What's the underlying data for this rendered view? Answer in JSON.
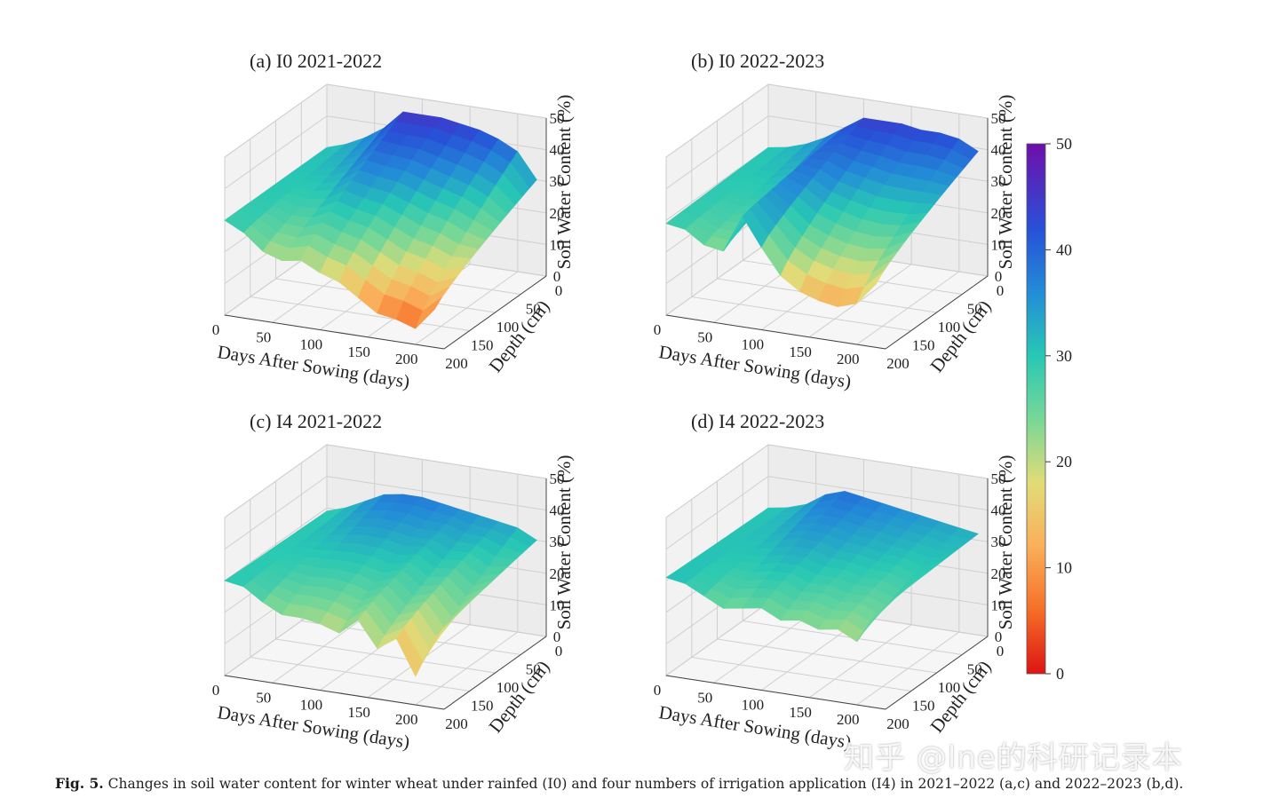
{
  "caption": {
    "label": "Fig. 5.",
    "text": "Changes in soil water content for winter wheat under rainfed (I0) and four numbers of irrigation application (I4) in 2021–2022 (a,c) and 2022–2023 (b,d)."
  },
  "watermark": "知乎 @lne的科研记录本",
  "colorbar": {
    "colormap": "rainbow_r (red=0 → purple=50)",
    "ticks": [
      "0",
      "10",
      "20",
      "30",
      "40",
      "50"
    ],
    "range": [
      0,
      50
    ]
  },
  "chart_data": [
    {
      "type": "surface3d",
      "title": "(a)  I0   2021-2022",
      "xlabel": "Days After Sowing (days)",
      "ylabel": "Depth (cm)",
      "zlabel": "Soil Water Content (%)",
      "xticks": [
        "0",
        "50",
        "100",
        "150",
        "200"
      ],
      "yticks": [
        "0",
        "50",
        "100",
        "150",
        "200"
      ],
      "zticks": [
        "0",
        "10",
        "20",
        "30",
        "40",
        "50"
      ],
      "xlim": [
        0,
        230
      ],
      "ylim": [
        0,
        200
      ],
      "zlim": [
        0,
        50
      ],
      "grid": true,
      "profile_days": [
        0,
        20,
        40,
        60,
        80,
        100,
        120,
        140,
        160,
        180,
        200,
        220
      ],
      "surface_swc_min": [
        30,
        27,
        22,
        20,
        21,
        18,
        16,
        12,
        8,
        7,
        5,
        12
      ],
      "deep_swc_max": [
        30,
        32,
        35,
        39,
        45,
        45,
        45,
        44,
        43,
        41,
        38,
        30
      ]
    },
    {
      "type": "surface3d",
      "title": "(b)  I0   2022-2023",
      "xlabel": "Days After Sowing (days)",
      "ylabel": "Depth (cm)",
      "zlabel": "Soil Water Content (%)",
      "xticks": [
        "0",
        "50",
        "100",
        "150",
        "200"
      ],
      "yticks": [
        "0",
        "50",
        "100",
        "150",
        "200"
      ],
      "zticks": [
        "0",
        "10",
        "20",
        "30",
        "40",
        "50"
      ],
      "xlim": [
        0,
        230
      ],
      "ylim": [
        0,
        200
      ],
      "zlim": [
        0,
        50
      ],
      "grid": true,
      "profile_days": [
        0,
        20,
        40,
        60,
        80,
        100,
        120,
        140,
        160,
        180,
        200,
        220
      ],
      "surface_swc_min": [
        29,
        28,
        24,
        23,
        35,
        26,
        18,
        14,
        12,
        11,
        13,
        20
      ],
      "deep_swc_max": [
        30,
        31,
        33,
        36,
        40,
        44,
        44,
        44,
        43,
        43,
        42,
        39
      ]
    },
    {
      "type": "surface3d",
      "title": "(c)  I4   2021-2022",
      "xlabel": "Days After Sowing (days)",
      "ylabel": "Depth (cm)",
      "zlabel": "Soil Water Content (%)",
      "xticks": [
        "0",
        "50",
        "100",
        "150",
        "200"
      ],
      "yticks": [
        "0",
        "50",
        "100",
        "150",
        "200"
      ],
      "zticks": [
        "0",
        "10",
        "20",
        "30",
        "40",
        "50"
      ],
      "xlim": [
        0,
        230
      ],
      "ylim": [
        0,
        200
      ],
      "zlim": [
        0,
        50
      ],
      "grid": true,
      "profile_days": [
        0,
        20,
        40,
        60,
        80,
        100,
        120,
        140,
        160,
        180,
        200,
        220
      ],
      "surface_swc_min": [
        30,
        29,
        25,
        22,
        22,
        21,
        19,
        24,
        16,
        20,
        9,
        22
      ],
      "deep_swc_max": [
        29,
        31,
        34,
        37,
        38,
        38,
        37,
        36,
        35,
        34,
        33,
        30
      ]
    },
    {
      "type": "surface3d",
      "title": "(d)  I4   2022-2023",
      "xlabel": "Days After Sowing (days)",
      "ylabel": "Depth (cm)",
      "zlabel": "Soil Water Content (%)",
      "xticks": [
        "0",
        "50",
        "100",
        "150",
        "200"
      ],
      "yticks": [
        "0",
        "50",
        "100",
        "150",
        "200"
      ],
      "zticks": [
        "0",
        "10",
        "20",
        "30",
        "40",
        "50"
      ],
      "xlim": [
        0,
        230
      ],
      "ylim": [
        0,
        200
      ],
      "zlim": [
        0,
        50
      ],
      "grid": true,
      "profile_days": [
        0,
        20,
        40,
        60,
        80,
        100,
        120,
        140,
        160,
        180,
        200,
        220
      ],
      "surface_swc_min": [
        31,
        30,
        27,
        24,
        25,
        26,
        23,
        24,
        22,
        23,
        20,
        30
      ],
      "deep_swc_max": [
        30,
        31,
        33,
        37,
        39,
        38,
        37,
        36,
        35,
        34,
        33,
        32
      ]
    }
  ]
}
